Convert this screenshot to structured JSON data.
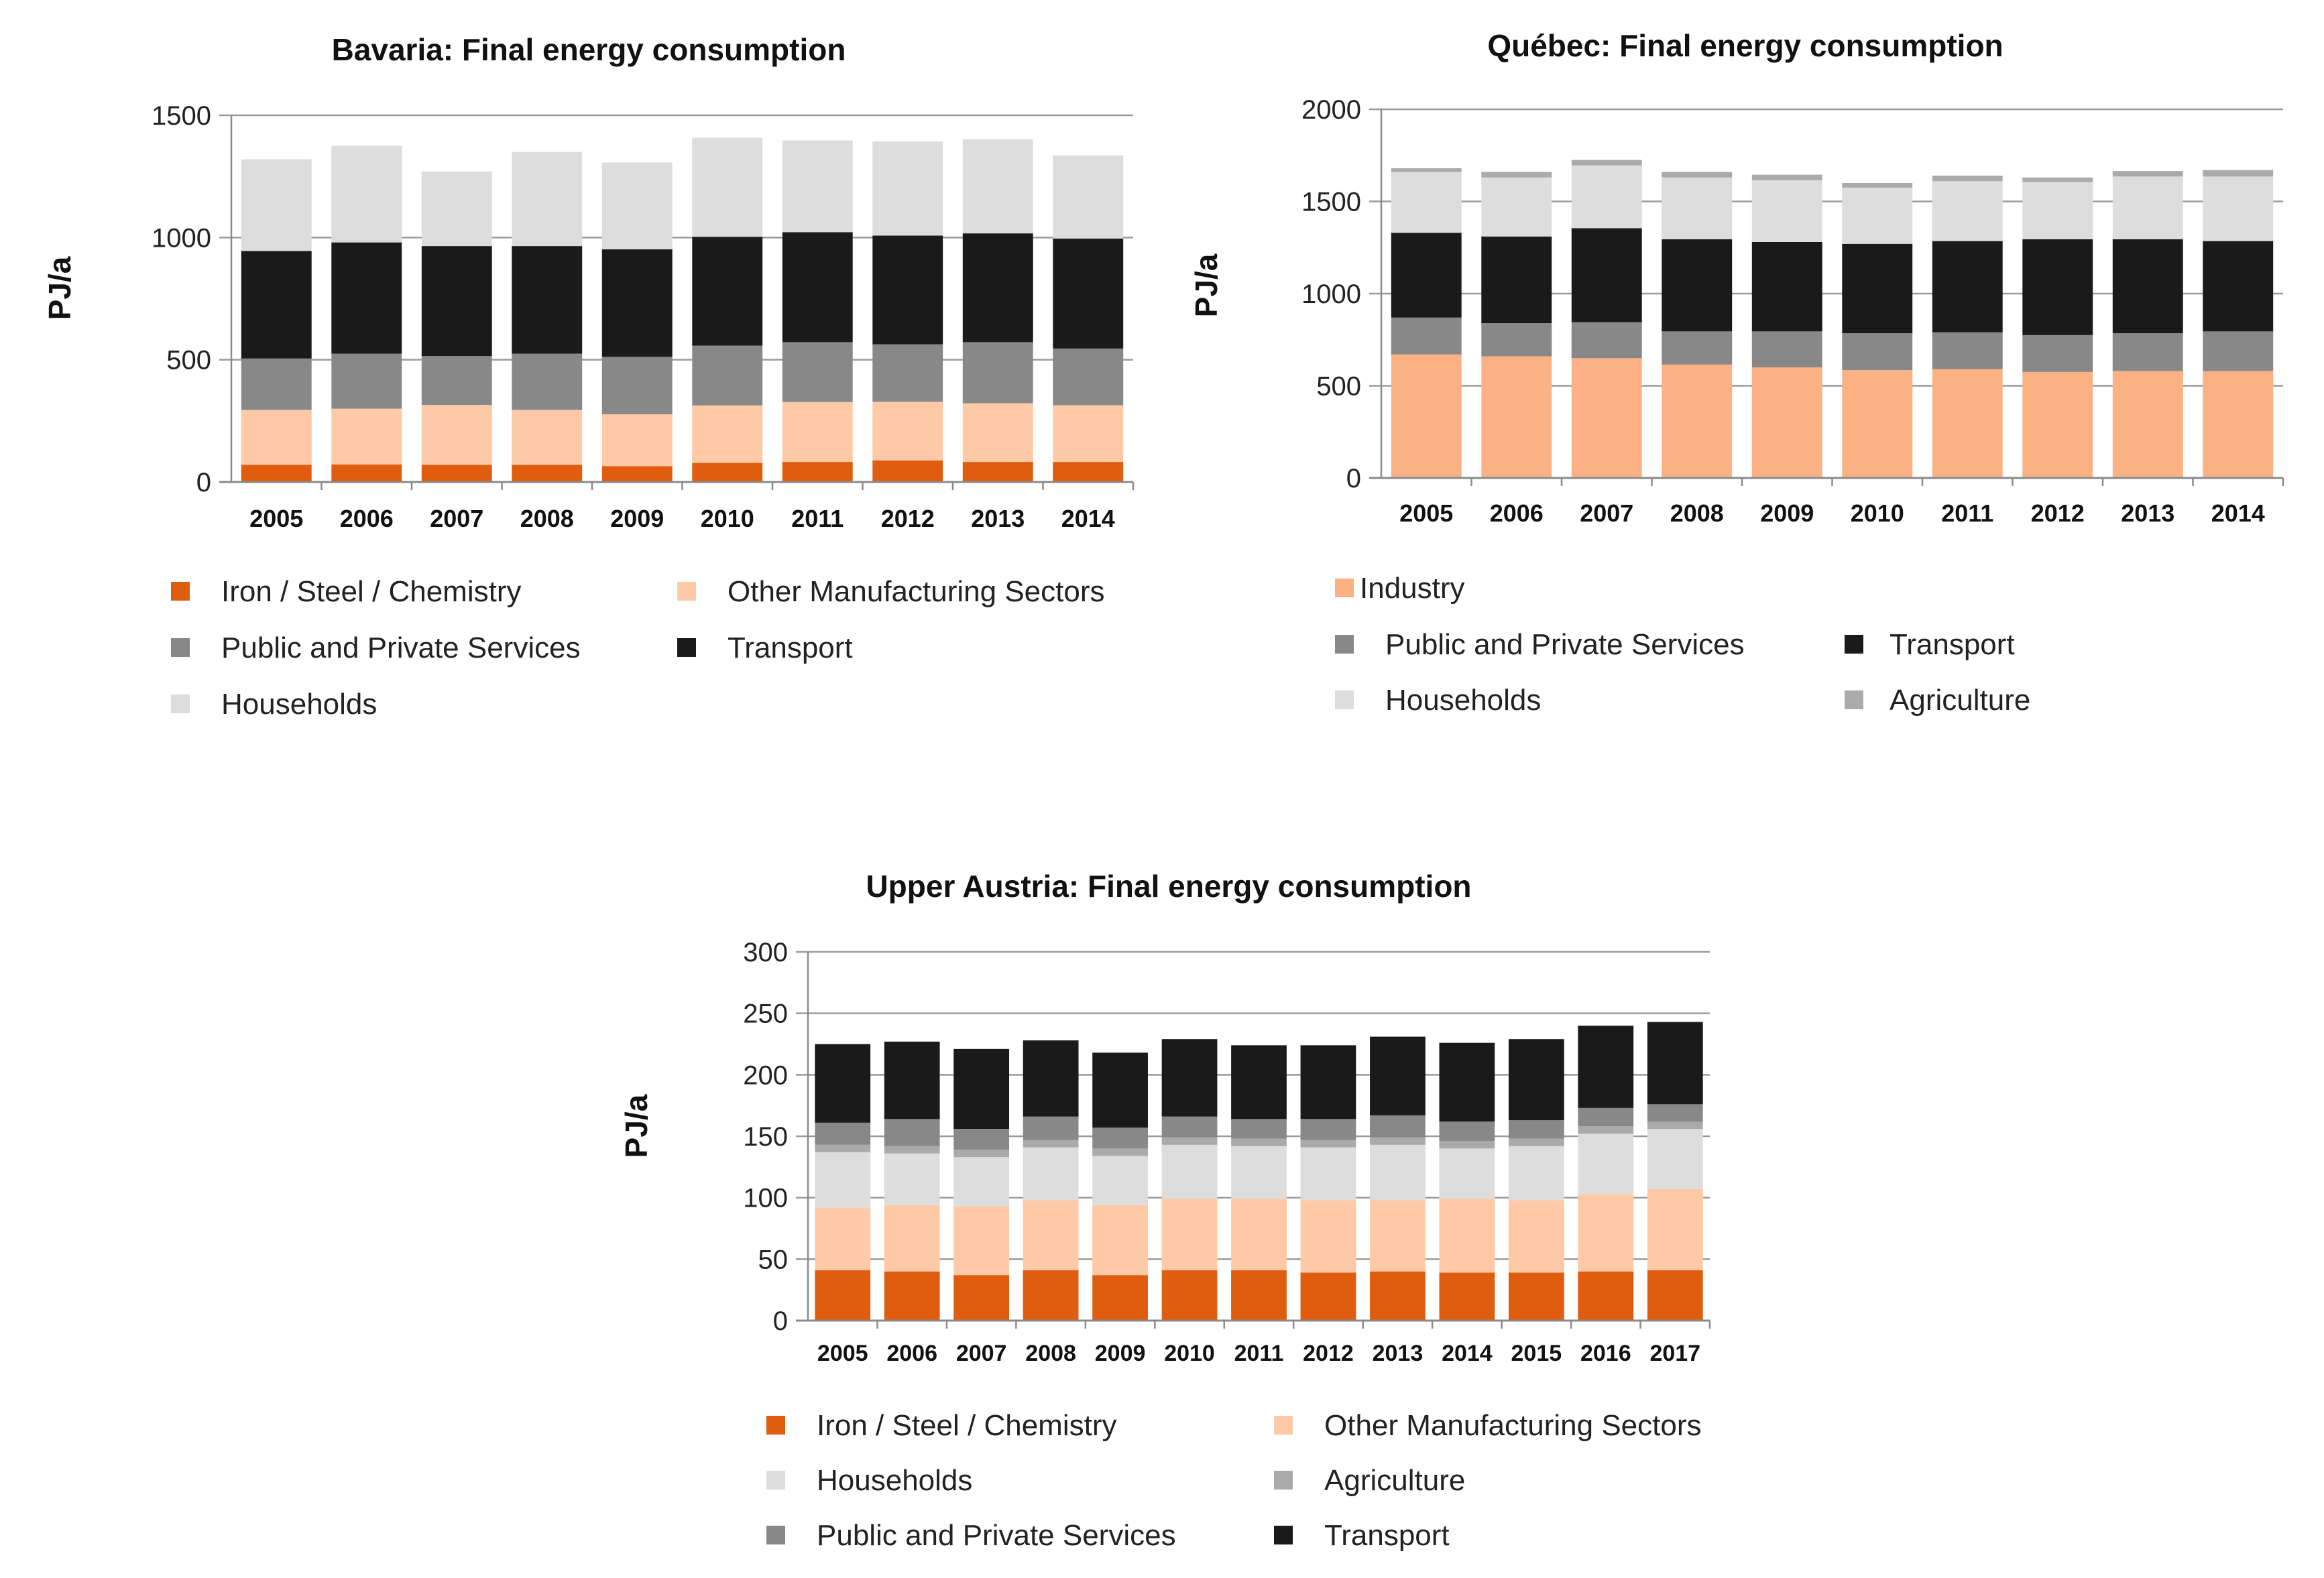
{
  "chart_data": [
    {
      "type": "bar",
      "stacked": true,
      "title": "Bavaria: Final energy consumption",
      "ylabel": "PJ/a",
      "xlabel": "",
      "ylim": [
        0,
        1500
      ],
      "yticks": [
        "0",
        "500",
        "1000",
        "1500"
      ],
      "grid": true,
      "legend_position": "bottom",
      "categories": [
        "2005",
        "2006",
        "2007",
        "2008",
        "2009",
        "2010",
        "2011",
        "2012",
        "2013",
        "2014"
      ],
      "series": [
        {
          "name": "Iron / Steel / Chemistry",
          "color": "#e05c0e",
          "values": [
            70,
            72,
            70,
            70,
            65,
            78,
            82,
            88,
            82,
            82
          ]
        },
        {
          "name": "Other Manufacturing Sectors",
          "color": "#fdc9a7",
          "values": [
            225,
            228,
            245,
            225,
            212,
            235,
            245,
            240,
            240,
            232
          ]
        },
        {
          "name": "Public and Private Services",
          "color": "#888888",
          "values": [
            210,
            225,
            200,
            230,
            235,
            245,
            245,
            235,
            250,
            232
          ]
        },
        {
          "name": "Transport",
          "color": "#1a1a1a",
          "values": [
            440,
            455,
            450,
            440,
            440,
            445,
            450,
            445,
            445,
            450
          ]
        },
        {
          "name": "Households",
          "color": "#dddddd",
          "values": [
            375,
            395,
            305,
            385,
            355,
            405,
            375,
            385,
            385,
            340
          ]
        }
      ],
      "legend_order": [
        "Iron / Steel / Chemistry",
        "Other Manufacturing Sectors",
        "Public and Private Services",
        "Transport",
        "Households"
      ]
    },
    {
      "type": "bar",
      "stacked": true,
      "title": "Québec: Final energy consumption",
      "ylabel": "PJ/a",
      "xlabel": "",
      "ylim": [
        0,
        2000
      ],
      "yticks": [
        "0",
        "500",
        "1000",
        "1500",
        "2000"
      ],
      "grid": true,
      "legend_position": "bottom",
      "categories": [
        "2005",
        "2006",
        "2007",
        "2008",
        "2009",
        "2010",
        "2011",
        "2012",
        "2013",
        "2014"
      ],
      "series": [
        {
          "name": "Industry",
          "color": "#fbb183",
          "values": [
            670,
            660,
            650,
            615,
            600,
            585,
            590,
            575,
            580,
            580
          ]
        },
        {
          "name": "Public and Private Services",
          "color": "#888888",
          "values": [
            200,
            180,
            195,
            180,
            195,
            200,
            200,
            200,
            205,
            215
          ]
        },
        {
          "name": "Transport",
          "color": "#1a1a1a",
          "values": [
            460,
            470,
            510,
            500,
            485,
            485,
            495,
            520,
            510,
            490
          ]
        },
        {
          "name": "Households",
          "color": "#dddddd",
          "values": [
            330,
            320,
            340,
            335,
            335,
            305,
            325,
            310,
            340,
            350
          ]
        },
        {
          "name": "Agriculture",
          "color": "#aaaaaa",
          "values": [
            20,
            30,
            30,
            30,
            30,
            25,
            30,
            25,
            30,
            35
          ]
        }
      ],
      "legend_order": [
        "Industry",
        "Public and Private Services",
        "Transport",
        "Households",
        "Agriculture"
      ]
    },
    {
      "type": "bar",
      "stacked": true,
      "title": "Upper Austria: Final energy consumption",
      "ylabel": "PJ/a",
      "xlabel": "",
      "ylim": [
        0,
        300
      ],
      "yticks": [
        "0",
        "50",
        "100",
        "150",
        "200",
        "250",
        "300"
      ],
      "grid": true,
      "legend_position": "bottom",
      "categories": [
        "2005",
        "2006",
        "2007",
        "2008",
        "2009",
        "2010",
        "2011",
        "2012",
        "2013",
        "2014",
        "2015",
        "2016",
        "2017"
      ],
      "series": [
        {
          "name": "Iron / Steel / Chemistry",
          "color": "#e05c0e",
          "values": [
            41,
            40,
            37,
            41,
            37,
            41,
            41,
            39,
            40,
            39,
            39,
            40,
            41
          ]
        },
        {
          "name": "Other Manufacturing Sectors",
          "color": "#fdc9a7",
          "values": [
            51,
            54,
            56,
            57,
            57,
            58,
            58,
            59,
            58,
            60,
            59,
            63,
            66
          ]
        },
        {
          "name": "Households",
          "color": "#dddddd",
          "values": [
            45,
            42,
            40,
            43,
            40,
            44,
            43,
            43,
            45,
            41,
            44,
            49,
            49
          ]
        },
        {
          "name": "Agriculture",
          "color": "#aaaaaa",
          "values": [
            6,
            6,
            6,
            6,
            6,
            6,
            6,
            6,
            6,
            6,
            6,
            6,
            6
          ]
        },
        {
          "name": "Public and Private Services",
          "color": "#888888",
          "values": [
            18,
            22,
            17,
            19,
            17,
            17,
            16,
            17,
            18,
            16,
            15,
            15,
            14
          ]
        },
        {
          "name": "Transport",
          "color": "#1a1a1a",
          "values": [
            64,
            63,
            65,
            62,
            61,
            63,
            60,
            60,
            64,
            64,
            66,
            67,
            67
          ]
        }
      ],
      "legend_order": [
        "Iron / Steel / Chemistry",
        "Other Manufacturing Sectors",
        "Households",
        "Agriculture",
        "Public and Private Services",
        "Transport"
      ]
    }
  ]
}
